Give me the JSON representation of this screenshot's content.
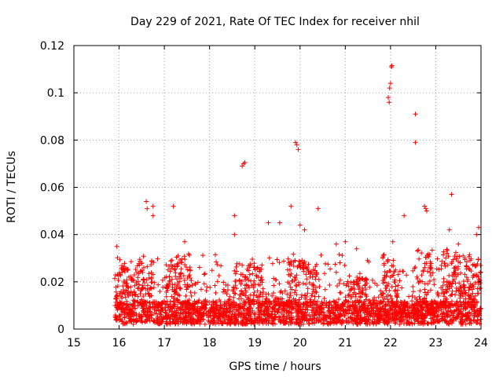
{
  "chart_data": {
    "type": "scatter",
    "title": "Day 229 of 2021, Rate Of TEC Index for receiver nhil",
    "xlabel": "GPS time / hours",
    "ylabel": "ROTI / TECUs",
    "xlim": [
      15,
      24
    ],
    "ylim": [
      0,
      0.12
    ],
    "xticks": [
      "15",
      "16",
      "17",
      "18",
      "19",
      "20",
      "21",
      "22",
      "23",
      "24"
    ],
    "yticks": [
      "0",
      "0.02",
      "0.04",
      "0.06",
      "0.08",
      "0.1",
      "0.12"
    ],
    "grid": true,
    "marker": "+",
    "marker_color": "#ff0000",
    "series": [
      {
        "name": "ROTI",
        "data_extent_hours": [
          15.9,
          24.0
        ],
        "baseline_range": [
          0.002,
          0.02
        ],
        "outliers": [
          [
            15.95,
            0.035
          ],
          [
            16.6,
            0.054
          ],
          [
            16.62,
            0.051
          ],
          [
            16.75,
            0.052
          ],
          [
            16.75,
            0.048
          ],
          [
            17.2,
            0.052
          ],
          [
            17.45,
            0.037
          ],
          [
            18.55,
            0.048
          ],
          [
            18.55,
            0.04
          ],
          [
            18.72,
            0.069
          ],
          [
            18.75,
            0.07
          ],
          [
            18.78,
            0.0705
          ],
          [
            19.3,
            0.045
          ],
          [
            19.55,
            0.045
          ],
          [
            19.8,
            0.052
          ],
          [
            19.9,
            0.079
          ],
          [
            19.93,
            0.078
          ],
          [
            19.96,
            0.076
          ],
          [
            20.0,
            0.044
          ],
          [
            20.1,
            0.042
          ],
          [
            20.4,
            0.051
          ],
          [
            20.8,
            0.036
          ],
          [
            21.0,
            0.037
          ],
          [
            21.25,
            0.034
          ],
          [
            21.95,
            0.098
          ],
          [
            21.97,
            0.096
          ],
          [
            21.98,
            0.102
          ],
          [
            22.0,
            0.104
          ],
          [
            22.02,
            0.111
          ],
          [
            22.03,
            0.1115
          ],
          [
            22.05,
            0.037
          ],
          [
            22.3,
            0.048
          ],
          [
            22.55,
            0.091
          ],
          [
            22.55,
            0.079
          ],
          [
            22.75,
            0.052
          ],
          [
            22.78,
            0.051
          ],
          [
            22.8,
            0.05
          ],
          [
            23.35,
            0.057
          ],
          [
            23.3,
            0.042
          ],
          [
            23.5,
            0.036
          ],
          [
            23.95,
            0.043
          ],
          [
            23.9,
            0.04
          ]
        ]
      }
    ]
  }
}
